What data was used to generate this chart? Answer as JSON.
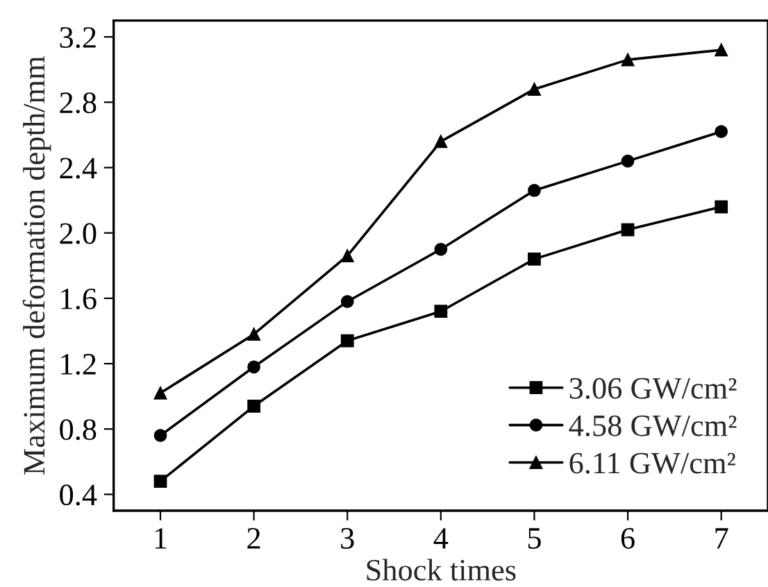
{
  "chart_data": {
    "type": "line",
    "xlabel": "Shock times",
    "ylabel": "Maximum deformation depth/mm",
    "x": [
      1,
      2,
      3,
      4,
      5,
      6,
      7
    ],
    "series": [
      {
        "name": "3.06 GW/cm²",
        "color": "#000000",
        "marker": "square",
        "values": [
          0.48,
          0.94,
          1.34,
          1.52,
          1.84,
          2.02,
          2.16
        ]
      },
      {
        "name": "4.58 GW/cm²",
        "color": "#000000",
        "marker": "circle",
        "values": [
          0.76,
          1.18,
          1.58,
          1.9,
          2.26,
          2.44,
          2.62
        ]
      },
      {
        "name": "6.11 GW/cm²",
        "color": "#000000",
        "marker": "triangle",
        "values": [
          1.02,
          1.38,
          1.86,
          2.56,
          2.88,
          3.06,
          3.12
        ]
      }
    ],
    "xlim": [
      0.5,
      7.5
    ],
    "xticks": [
      1,
      2,
      3,
      4,
      5,
      6,
      7
    ],
    "ylim": [
      0.3,
      3.3
    ],
    "yticks": [
      0.4,
      0.8,
      1.2,
      1.6,
      {
        "value": 2.0,
        "label": "2.0"
      },
      2.4,
      2.8,
      3.2
    ],
    "legend": "bottom right",
    "grid": false,
    "line_style": "solid"
  }
}
